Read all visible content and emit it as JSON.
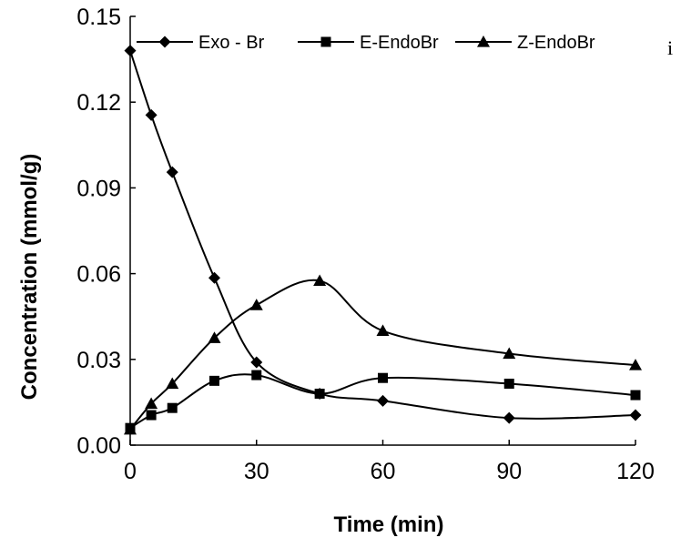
{
  "chart_data": {
    "type": "line",
    "xlabel": "Time (min)",
    "ylabel": "Concentration (mmol/g)",
    "xlim": [
      0,
      120
    ],
    "ylim": [
      0,
      0.15
    ],
    "x_ticks": [
      "0",
      "30",
      "60",
      "90",
      "120"
    ],
    "y_ticks": [
      "0.00",
      "0.03",
      "0.06",
      "0.09",
      "0.12",
      "0.15"
    ],
    "grid": false,
    "legend_position": "top",
    "corner_note": "i",
    "series": [
      {
        "name": "Exo - Br",
        "marker": "diamond",
        "x": [
          0,
          5,
          10,
          20,
          30,
          45,
          60,
          90,
          120
        ],
        "y": [
          0.138,
          0.1155,
          0.0955,
          0.0585,
          0.029,
          0.018,
          0.0155,
          0.0095,
          0.0105
        ]
      },
      {
        "name": "E-EndoBr",
        "marker": "square",
        "x": [
          0,
          5,
          10,
          20,
          30,
          45,
          60,
          90,
          120
        ],
        "y": [
          0.006,
          0.0105,
          0.013,
          0.0225,
          0.0245,
          0.018,
          0.0235,
          0.0215,
          0.0175
        ]
      },
      {
        "name": "Z-EndoBr",
        "marker": "triangle",
        "x": [
          0,
          5,
          10,
          20,
          30,
          45,
          60,
          90,
          120
        ],
        "y": [
          0.0055,
          0.0145,
          0.0215,
          0.0375,
          0.049,
          0.0575,
          0.04,
          0.032,
          0.028
        ]
      }
    ]
  }
}
